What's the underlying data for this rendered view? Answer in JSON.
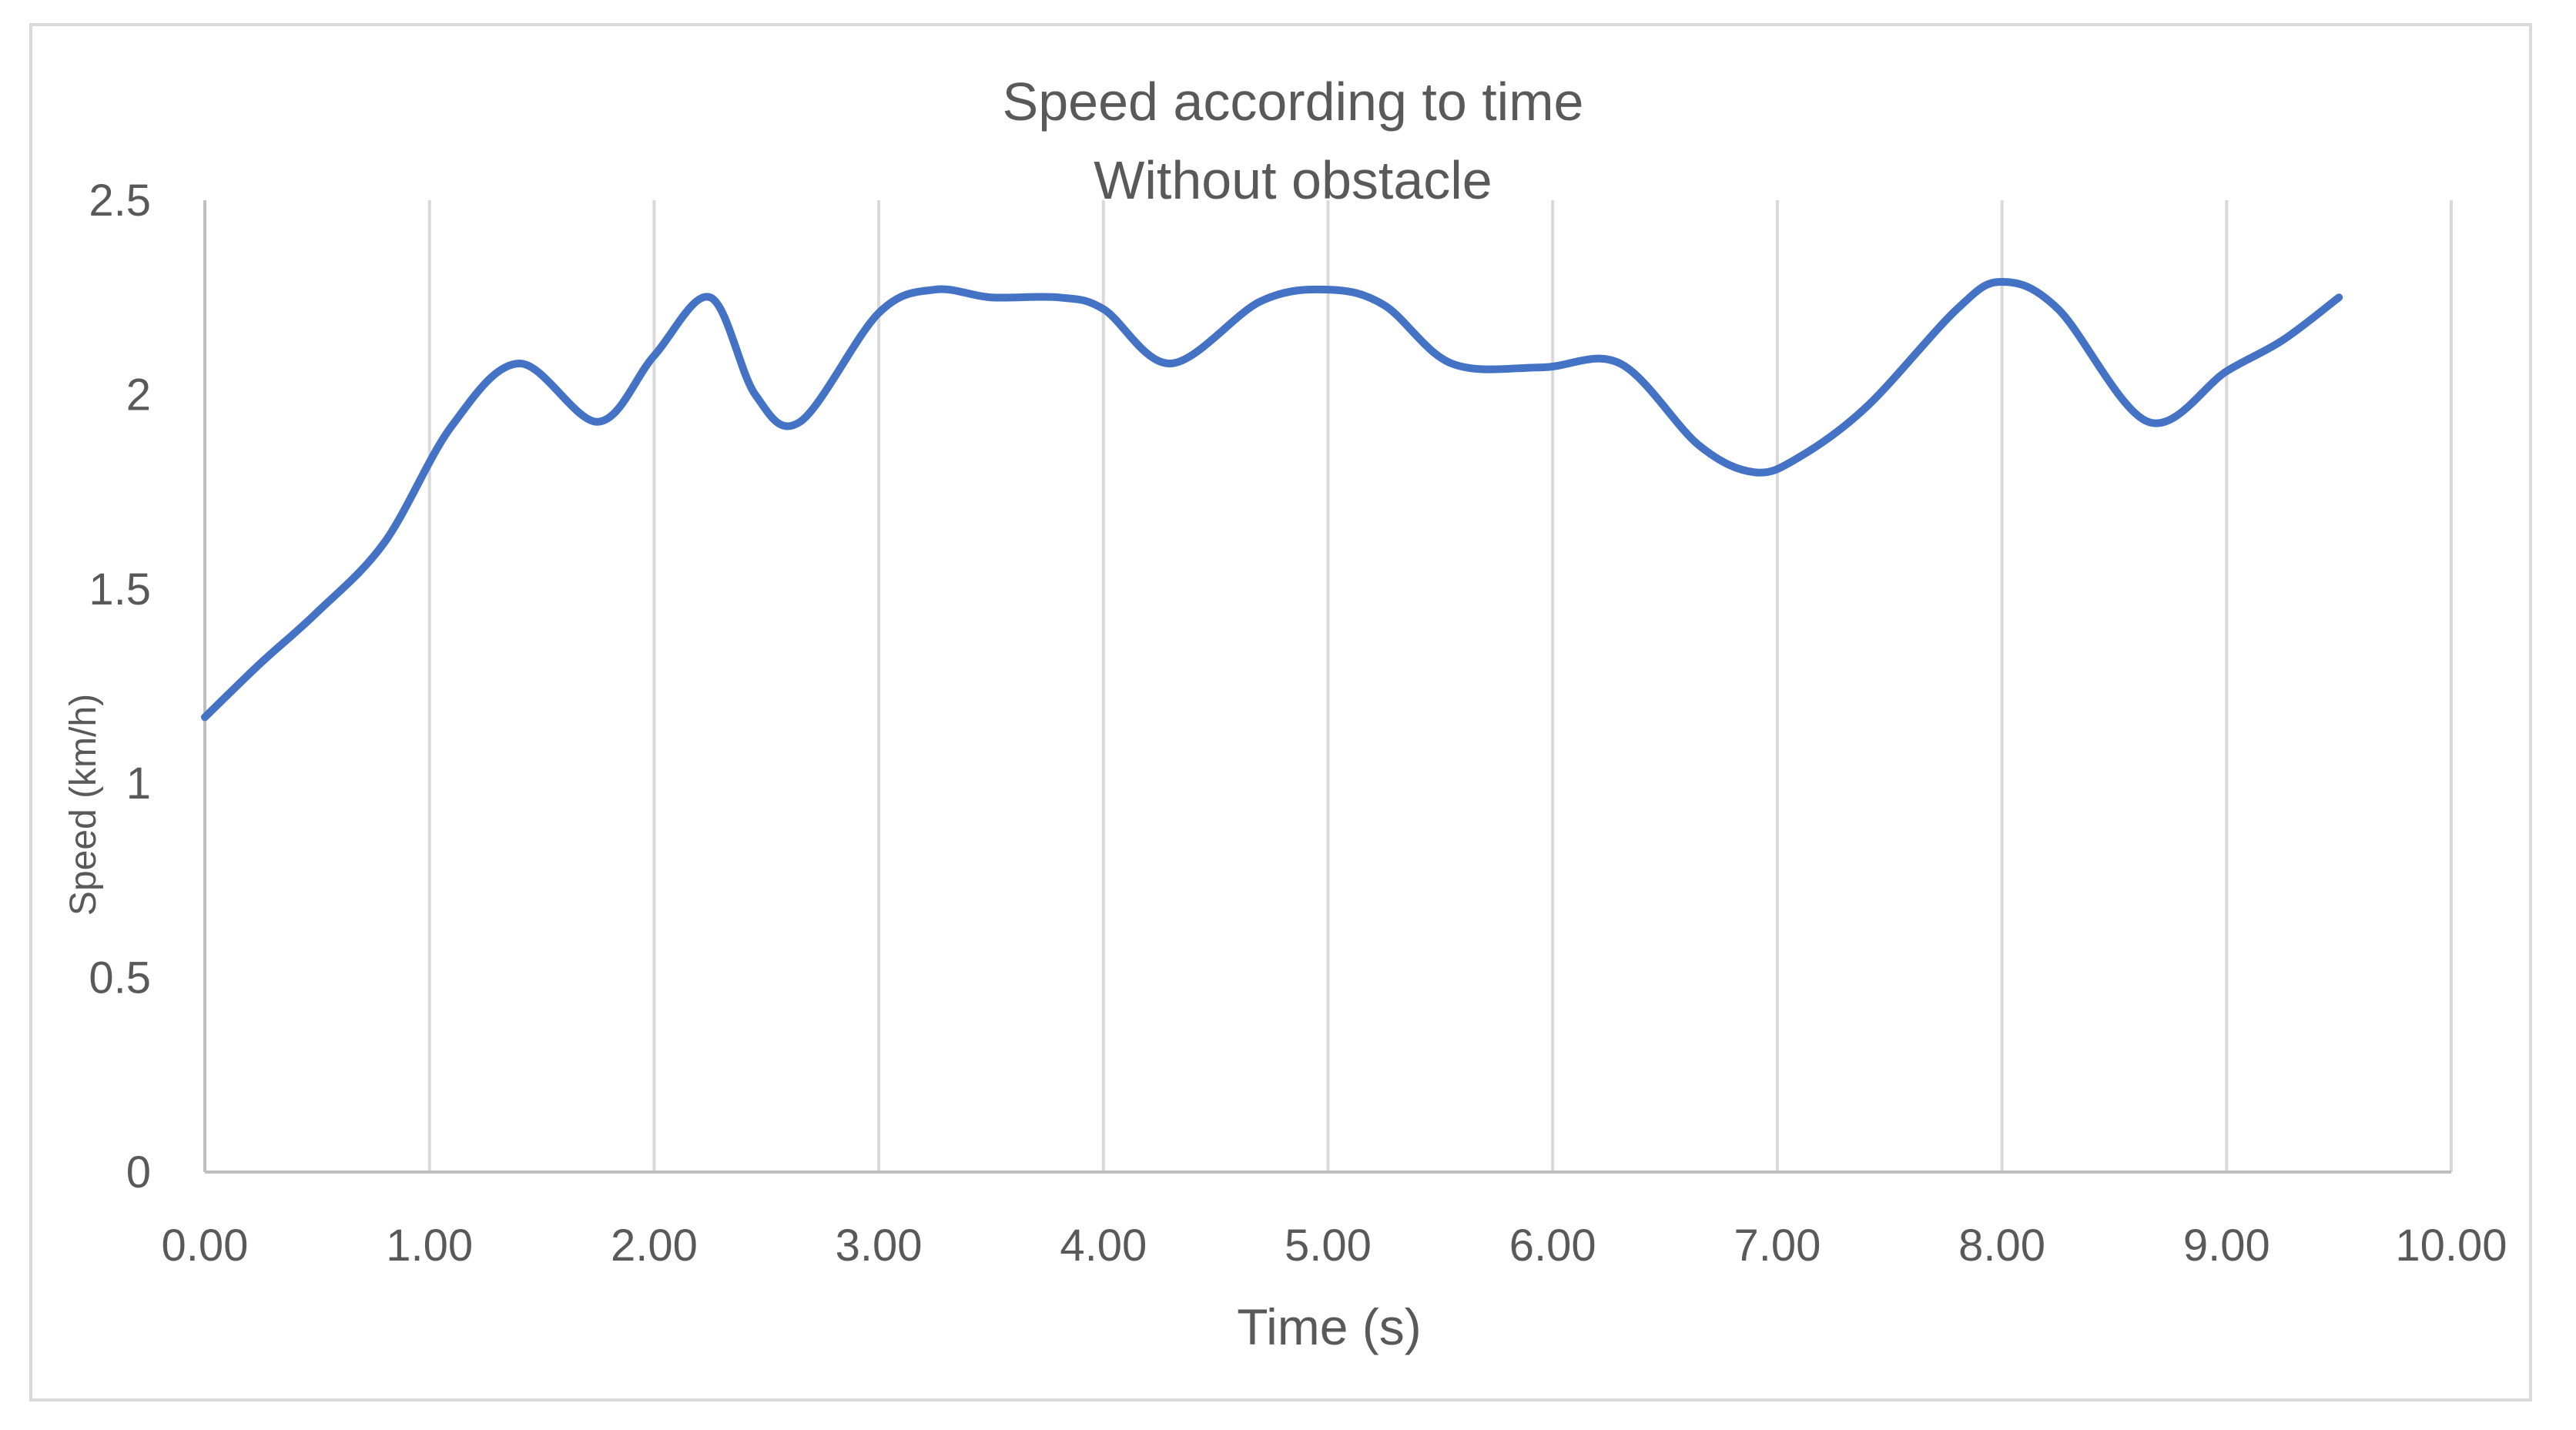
{
  "chart_data": {
    "type": "line",
    "title_lines": [
      "Speed according to time",
      "Without obstacle"
    ],
    "xlabel": "Time (s)",
    "ylabel": "Speed (km/h)",
    "xlim": [
      0,
      10
    ],
    "ylim": [
      0,
      2.5
    ],
    "x_ticks": [
      "0.00",
      "1.00",
      "2.00",
      "3.00",
      "4.00",
      "5.00",
      "6.00",
      "7.00",
      "8.00",
      "9.00",
      "10.00"
    ],
    "y_ticks": [
      "0",
      "0.5",
      "1",
      "1.5",
      "2",
      "2.5"
    ],
    "grid": "vertical",
    "smooth": true,
    "series": [
      {
        "color": "#4472C4",
        "x": [
          0.0,
          0.25,
          0.5,
          0.8,
          1.1,
          1.4,
          1.75,
          2.0,
          2.25,
          2.45,
          2.65,
          3.0,
          3.25,
          3.5,
          3.8,
          4.0,
          4.3,
          4.7,
          5.0,
          5.25,
          5.55,
          5.95,
          6.3,
          6.65,
          6.9,
          7.1,
          7.4,
          7.8,
          8.0,
          8.25,
          8.65,
          9.0,
          9.25,
          9.5
        ],
        "y": [
          1.17,
          1.31,
          1.44,
          1.62,
          1.92,
          2.08,
          1.93,
          2.1,
          2.25,
          2.0,
          1.93,
          2.21,
          2.27,
          2.25,
          2.25,
          2.22,
          2.08,
          2.24,
          2.27,
          2.23,
          2.08,
          2.07,
          2.08,
          1.87,
          1.8,
          1.84,
          1.97,
          2.22,
          2.29,
          2.22,
          1.93,
          2.06,
          2.14,
          2.25
        ]
      }
    ]
  }
}
